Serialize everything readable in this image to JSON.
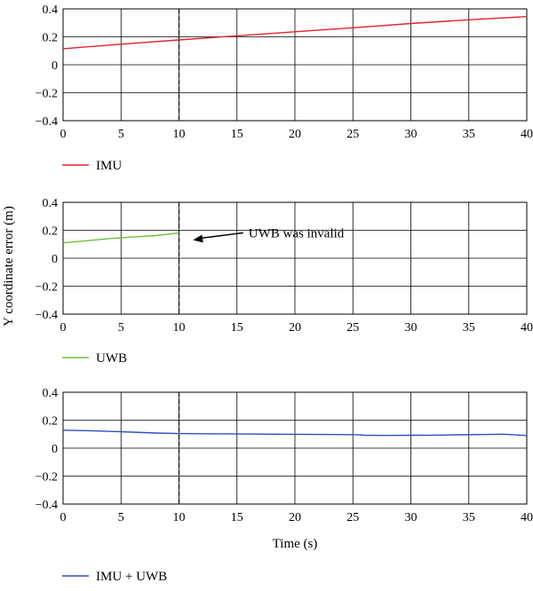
{
  "figure": {
    "ylabel": "Y coordinate error (m)",
    "xlabel": "Time (s)"
  },
  "chart_data": [
    {
      "type": "line",
      "xlim": [
        0,
        40
      ],
      "ylim": [
        -0.4,
        0.4
      ],
      "x_ticks": [
        0,
        5,
        10,
        15,
        20,
        25,
        30,
        35,
        40
      ],
      "y_ticks": [
        0.4,
        0.2,
        0,
        -0.2,
        -0.4
      ],
      "x_tick_labels": [
        "0",
        "5",
        "10",
        "15",
        "20",
        "25",
        "30",
        "35",
        "40"
      ],
      "y_tick_labels": [
        "0.4",
        "0.2",
        "0",
        "−0.2",
        "−0.4"
      ],
      "grid": true,
      "vline_x": 10,
      "legend_position": "bottom-left",
      "series": [
        {
          "name": "IMU",
          "color": "#e0242b",
          "x": [
            0,
            5,
            10,
            15,
            20,
            25,
            30,
            35,
            40
          ],
          "y": [
            0.115,
            0.147,
            0.178,
            0.207,
            0.236,
            0.265,
            0.295,
            0.322,
            0.345
          ]
        }
      ]
    },
    {
      "type": "line",
      "xlim": [
        0,
        40
      ],
      "ylim": [
        -0.4,
        0.4
      ],
      "x_ticks": [
        0,
        5,
        10,
        15,
        20,
        25,
        30,
        35,
        40
      ],
      "y_ticks": [
        0.4,
        0.2,
        0,
        -0.2,
        -0.4
      ],
      "x_tick_labels": [
        "0",
        "5",
        "10",
        "15",
        "20",
        "25",
        "30",
        "35",
        "40"
      ],
      "y_tick_labels": [
        "0.4",
        "0.2",
        "0",
        "−0.2",
        "−0.4"
      ],
      "grid": true,
      "vline_x": 10,
      "legend_position": "bottom-left",
      "annotation": {
        "text": "UWB was invalid",
        "x": 16,
        "y": 0.15,
        "arrow_to": [
          11.2,
          0.13
        ]
      },
      "series": [
        {
          "name": "UWB",
          "color": "#6cc13c",
          "x": [
            0,
            2,
            4,
            6,
            8,
            10
          ],
          "y": [
            0.11,
            0.125,
            0.14,
            0.152,
            0.162,
            0.18
          ]
        }
      ]
    },
    {
      "type": "line",
      "xlim": [
        0,
        40
      ],
      "ylim": [
        -0.4,
        0.4
      ],
      "x_ticks": [
        0,
        5,
        10,
        15,
        20,
        25,
        30,
        35,
        40
      ],
      "y_ticks": [
        0.4,
        0.2,
        0,
        -0.2,
        -0.4
      ],
      "x_tick_labels": [
        "0",
        "5",
        "10",
        "15",
        "20",
        "25",
        "30",
        "35",
        "40"
      ],
      "y_tick_labels": [
        "0.4",
        "0.2",
        "0",
        "−0.2",
        "−0.4"
      ],
      "grid": true,
      "vline_x": 10,
      "legend_position": "bottom-left",
      "series": [
        {
          "name": "IMU + UWB",
          "color": "#2f4fbf",
          "x": [
            0,
            2,
            4,
            6,
            8,
            10,
            12,
            14,
            16,
            18,
            20,
            22,
            24,
            25.5,
            26,
            28,
            30,
            32,
            34,
            36,
            38,
            40
          ],
          "y": [
            0.128,
            0.125,
            0.12,
            0.114,
            0.108,
            0.104,
            0.103,
            0.102,
            0.101,
            0.1,
            0.099,
            0.098,
            0.097,
            0.096,
            0.092,
            0.091,
            0.092,
            0.093,
            0.095,
            0.097,
            0.1,
            0.09
          ]
        }
      ]
    }
  ]
}
